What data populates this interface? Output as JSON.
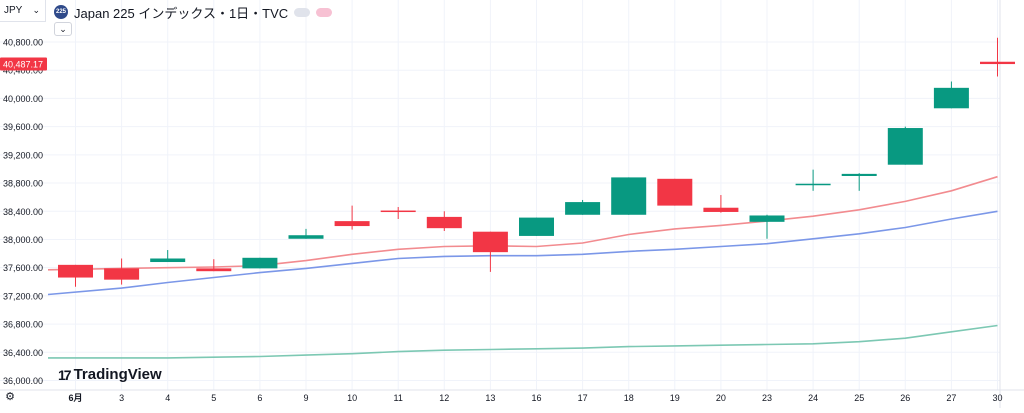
{
  "toolbar": {
    "currency": "JPY",
    "currency_chevron": "⌄",
    "collapse_chevron": "⌄"
  },
  "legend": {
    "symbol_badge": "225",
    "title": "Japan 225 インデックス・1日・TVC"
  },
  "branding": {
    "logo_mark": "17",
    "name": "TradingView"
  },
  "icons": {
    "currency-dropdown": "chevron-down-icon",
    "legend-collapse": "chevron-down-icon",
    "settings": "gear-icon",
    "visibility-toggle": "eye-pill-icon",
    "indicator-toggle": "equals-pill-icon"
  },
  "colors": {
    "up": "#089981",
    "down": "#f23645",
    "ma_fast": "#f28b8f",
    "ma_mid": "#7b97e8",
    "ma_slow": "#7cc8b3",
    "price_tag_bg": "#f23645"
  },
  "chart_data": {
    "type": "candlestick",
    "title": "Japan 225 インデックス・1日・TVC",
    "y_unit": "JPY",
    "ylim": [
      36000,
      41000
    ],
    "y_ticks": [
      "36,000.00",
      "36,400.00",
      "36,800.00",
      "37,200.00",
      "37,600.00",
      "38,000.00",
      "38,400.00",
      "38,800.00",
      "39,200.00",
      "39,600.00",
      "40,000.00",
      "40,400.00",
      "40,800.00"
    ],
    "x_labels": [
      "6月",
      "3",
      "4",
      "5",
      "6",
      "9",
      "10",
      "11",
      "12",
      "13",
      "16",
      "17",
      "18",
      "19",
      "20",
      "23",
      "24",
      "25",
      "26",
      "27",
      "30"
    ],
    "grid": true,
    "last_price_label": "40,487.17",
    "candles": [
      {
        "date": "6月",
        "open": 37640,
        "high": 37640,
        "low": 37330,
        "close": 37460
      },
      {
        "date": "3",
        "open": 37590,
        "high": 37730,
        "low": 37360,
        "close": 37430
      },
      {
        "date": "4",
        "open": 37680,
        "high": 37850,
        "low": 37680,
        "close": 37730
      },
      {
        "date": "5",
        "open": 37590,
        "high": 37720,
        "low": 37550,
        "close": 37550
      },
      {
        "date": "6",
        "open": 37590,
        "high": 37740,
        "low": 37590,
        "close": 37740
      },
      {
        "date": "9",
        "open": 38010,
        "high": 38150,
        "low": 38010,
        "close": 38060
      },
      {
        "date": "10",
        "open": 38260,
        "high": 38480,
        "low": 38140,
        "close": 38190
      },
      {
        "date": "11",
        "open": 38410,
        "high": 38460,
        "low": 38290,
        "close": 38400
      },
      {
        "date": "12",
        "open": 38320,
        "high": 38400,
        "low": 38120,
        "close": 38160
      },
      {
        "date": "13",
        "open": 38110,
        "high": 38110,
        "low": 37540,
        "close": 37820
      },
      {
        "date": "16",
        "open": 38050,
        "high": 38310,
        "low": 38050,
        "close": 38310
      },
      {
        "date": "17",
        "open": 38350,
        "high": 38560,
        "low": 38350,
        "close": 38530
      },
      {
        "date": "18",
        "open": 38350,
        "high": 38880,
        "low": 38350,
        "close": 38880
      },
      {
        "date": "19",
        "open": 38860,
        "high": 38860,
        "low": 38480,
        "close": 38480
      },
      {
        "date": "20",
        "open": 38450,
        "high": 38630,
        "low": 38380,
        "close": 38390
      },
      {
        "date": "23",
        "open": 38250,
        "high": 38350,
        "low": 38010,
        "close": 38340
      },
      {
        "date": "24",
        "open": 38780,
        "high": 38990,
        "low": 38690,
        "close": 38790
      },
      {
        "date": "25",
        "open": 38900,
        "high": 38940,
        "low": 38690,
        "close": 38930
      },
      {
        "date": "26",
        "open": 39060,
        "high": 39600,
        "low": 39060,
        "close": 39580
      },
      {
        "date": "27",
        "open": 39860,
        "high": 40240,
        "low": 39860,
        "close": 40150
      },
      {
        "date": "30",
        "open": 40520,
        "high": 40860,
        "low": 40310,
        "close": 40487.17
      }
    ],
    "series": [
      {
        "values": [
          37570,
          37590,
          37600,
          37610,
          37630,
          37700,
          37790,
          37860,
          37900,
          37910,
          37900,
          37950,
          38070,
          38150,
          38200,
          38260,
          38330,
          38420,
          38540,
          38690,
          38890
        ]
      },
      {
        "values": [
          37220,
          37310,
          37390,
          37460,
          37530,
          37590,
          37660,
          37730,
          37760,
          37770,
          37770,
          37790,
          37830,
          37860,
          37900,
          37940,
          38010,
          38080,
          38170,
          38290,
          38400
        ]
      },
      {
        "values": [
          36320,
          36320,
          36320,
          36330,
          36340,
          36360,
          36380,
          36410,
          36430,
          36440,
          36450,
          36460,
          36480,
          36490,
          36500,
          36510,
          36520,
          36550,
          36600,
          36690,
          36780
        ]
      }
    ]
  }
}
